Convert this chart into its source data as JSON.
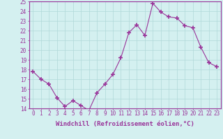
{
  "x": [
    0,
    1,
    2,
    3,
    4,
    5,
    6,
    7,
    8,
    9,
    10,
    11,
    12,
    13,
    14,
    15,
    16,
    17,
    18,
    19,
    20,
    21,
    22,
    23
  ],
  "y": [
    17.8,
    17.0,
    16.5,
    15.1,
    14.2,
    14.8,
    14.3,
    13.8,
    15.6,
    16.5,
    17.5,
    19.2,
    21.8,
    22.6,
    21.5,
    24.8,
    23.9,
    23.4,
    23.3,
    22.5,
    22.3,
    20.3,
    18.7,
    18.3
  ],
  "line_color": "#993399",
  "marker": "+",
  "marker_size": 4,
  "marker_lw": 1.2,
  "bg_color": "#d4f0f0",
  "grid_color": "#b0d8d8",
  "xlabel": "Windchill (Refroidissement éolien,°C)",
  "ylim": [
    14,
    25
  ],
  "xlim": [
    -0.5,
    23.5
  ],
  "yticks": [
    14,
    15,
    16,
    17,
    18,
    19,
    20,
    21,
    22,
    23,
    24,
    25
  ],
  "xticks": [
    0,
    1,
    2,
    3,
    4,
    5,
    6,
    7,
    8,
    9,
    10,
    11,
    12,
    13,
    14,
    15,
    16,
    17,
    18,
    19,
    20,
    21,
    22,
    23
  ],
  "tick_label_size": 5.5,
  "xlabel_size": 6.5,
  "line_width": 0.8,
  "spine_color": "#993399",
  "tick_color": "#993399"
}
